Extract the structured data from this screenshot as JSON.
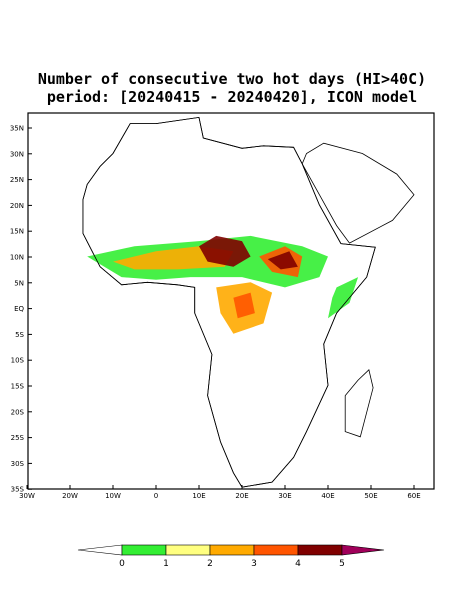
{
  "title": [
    "Number of consecutive two hot days (HI>40C)",
    "period: [20240415 - 20240420], ICON model"
  ],
  "lat_ticks": [
    "35N",
    "30N",
    "25N",
    "20N",
    "15N",
    "10N",
    "5N",
    "EQ",
    "5S",
    "10S",
    "15S",
    "20S",
    "25S",
    "30S",
    "35S"
  ],
  "lon_ticks": [
    "30W",
    "20W",
    "10W",
    "0",
    "10E",
    "20E",
    "30E",
    "40E",
    "50E",
    "60E"
  ],
  "colorbar": {
    "labels": [
      "0",
      "1",
      "2",
      "3",
      "4",
      "5"
    ],
    "colors": [
      "#ffffff",
      "#33ee33",
      "#ffff80",
      "#ffaa00",
      "#ff5500",
      "#800000",
      "#a0005a"
    ]
  }
}
